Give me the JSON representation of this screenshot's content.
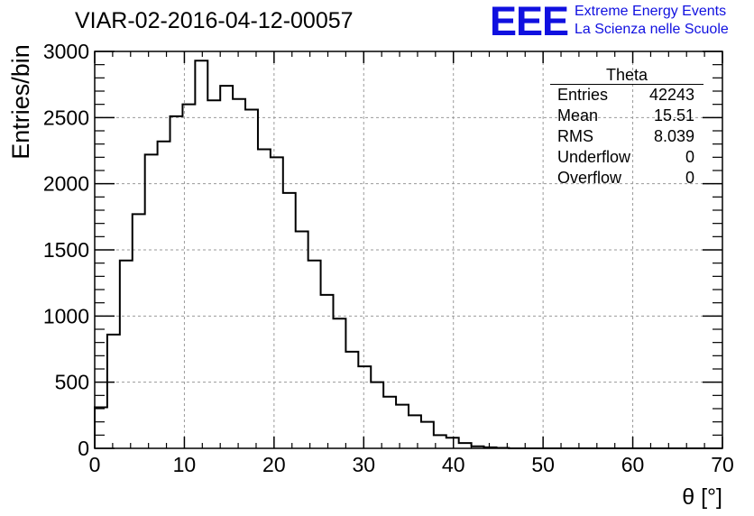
{
  "header": {
    "title": "VIAR-02-2016-04-12-00057",
    "logo_text": "EEE",
    "logo_line1": "Extreme Energy Events",
    "logo_line2": "La Scienza nelle Scuole",
    "logo_color": "#1010e0"
  },
  "stats": {
    "name": "Theta",
    "rows": [
      {
        "label": "Entries",
        "value": "42243"
      },
      {
        "label": "Mean",
        "value": "15.51"
      },
      {
        "label": "RMS",
        "value": "8.039"
      },
      {
        "label": "Underflow",
        "value": "0"
      },
      {
        "label": "Overflow",
        "value": "0"
      }
    ]
  },
  "chart_data": {
    "type": "bar",
    "style": "step-histogram",
    "title": "VIAR-02-2016-04-12-00057",
    "xlabel": "θ [°]",
    "ylabel": "Entries/bin",
    "xlim": [
      0,
      70
    ],
    "ylim": [
      0,
      3000
    ],
    "bin_width": 1.4,
    "xticks": [
      0,
      10,
      20,
      30,
      40,
      50,
      60,
      70
    ],
    "yticks": [
      0,
      500,
      1000,
      1500,
      2000,
      2500,
      3000
    ],
    "grid": true,
    "legend": "top-right",
    "series": [
      {
        "values": [
          310,
          860,
          1420,
          1770,
          2220,
          2320,
          2510,
          2600,
          2930,
          2630,
          2740,
          2640,
          2560,
          2260,
          2200,
          1930,
          1640,
          1420,
          1160,
          980,
          730,
          620,
          500,
          390,
          330,
          250,
          200,
          100,
          80,
          40,
          15,
          8,
          3,
          0,
          0,
          0,
          0,
          0,
          0,
          0,
          0,
          0,
          0,
          0,
          0,
          0,
          0,
          0,
          0,
          0
        ]
      }
    ]
  }
}
